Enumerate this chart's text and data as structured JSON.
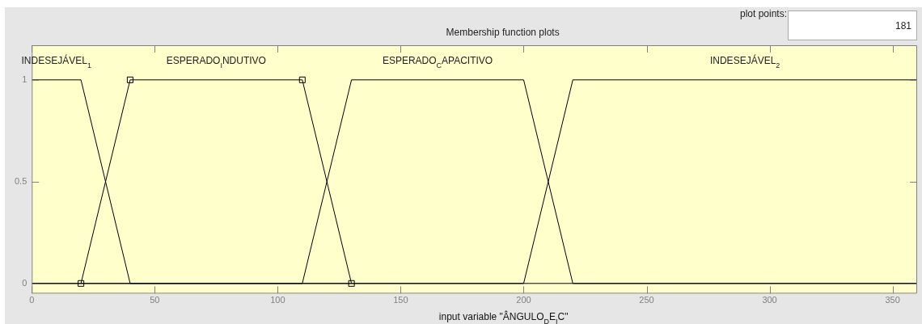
{
  "chart_data": {
    "type": "line",
    "title": "Membership function plots",
    "xlabel": "input variable \"ÂNGULO$_{D}$E$_{I}$C\"",
    "annotations": [
      "plot points:",
      "181"
    ],
    "xlim": [
      0,
      360
    ],
    "xticks": [
      0,
      50,
      100,
      150,
      200,
      250,
      300,
      350
    ],
    "ylim": [
      -0.05,
      1.17
    ],
    "yticks": [
      0,
      0.5,
      1
    ],
    "grid": false,
    "legend": false,
    "marker": "none",
    "line_style": "solid",
    "series": [
      {
        "name": "INDESEJÁVEL$_{1}$",
        "color": "#000000",
        "x": [
          0,
          20,
          40,
          360
        ],
        "values": [
          1,
          1,
          0,
          0
        ]
      },
      {
        "name": "ESPERADO$_{I}$NDUTIVO",
        "color": "#000000",
        "marker": "square",
        "x": [
          20,
          40,
          110,
          130
        ],
        "values": [
          0,
          1,
          1,
          0
        ]
      },
      {
        "name": "ESPERADO$_{C}$APACITIVO",
        "color": "#000000",
        "x": [
          0,
          110,
          130,
          200,
          220,
          360
        ],
        "values": [
          0,
          0,
          1,
          1,
          0,
          0
        ]
      },
      {
        "name": "INDESEJÁVEL$_{2}$",
        "color": "#000000",
        "x": [
          0,
          200,
          220,
          360
        ],
        "values": [
          0,
          0,
          1,
          1
        ]
      }
    ]
  }
}
